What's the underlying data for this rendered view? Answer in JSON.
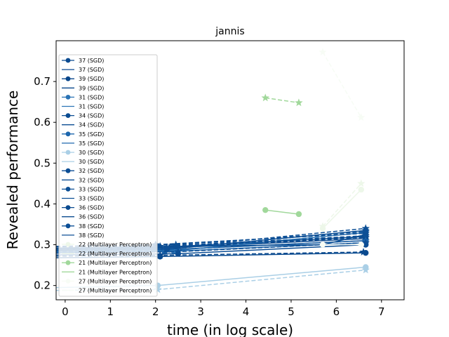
{
  "chart_data": {
    "type": "line",
    "title": "jannis",
    "xlabel": "time (in log scale)",
    "ylabel": "Revealed performance",
    "xlim": [
      -0.2,
      7.5
    ],
    "ylim": [
      0.165,
      0.8
    ],
    "xticks": [
      0,
      1,
      2,
      3,
      4,
      5,
      6,
      7
    ],
    "yticks": [
      0.2,
      0.3,
      0.4,
      0.5,
      0.6,
      0.7
    ],
    "legend_position": "upper-left",
    "legend": [
      {
        "label": "37 (SGD)",
        "style": "marker",
        "color": "#0b4a90"
      },
      {
        "label": "37 (SGD)",
        "style": "line",
        "color": "#0b4a90"
      },
      {
        "label": "39 (SGD)",
        "style": "marker",
        "color": "#08468b"
      },
      {
        "label": "39 (SGD)",
        "style": "line",
        "color": "#08468b"
      },
      {
        "label": "31 (SGD)",
        "style": "marker",
        "color": "#2a73b5"
      },
      {
        "label": "31 (SGD)",
        "style": "line",
        "color": "#2a73b5"
      },
      {
        "label": "34 (SGD)",
        "style": "marker",
        "color": "#0a4c92"
      },
      {
        "label": "34 (SGD)",
        "style": "line",
        "color": "#0a4c92"
      },
      {
        "label": "35 (SGD)",
        "style": "marker",
        "color": "#1c66ad"
      },
      {
        "label": "35 (SGD)",
        "style": "line",
        "color": "#1c66ad"
      },
      {
        "label": "30 (SGD)",
        "style": "marker",
        "color": "#aacfe6"
      },
      {
        "label": "30 (SGD)",
        "style": "line",
        "color": "#aacfe6"
      },
      {
        "label": "32 (SGD)",
        "style": "marker",
        "color": "#0b4d94"
      },
      {
        "label": "32 (SGD)",
        "style": "line",
        "color": "#0b4d94"
      },
      {
        "label": "33 (SGD)",
        "style": "marker",
        "color": "#0c4f95"
      },
      {
        "label": "33 (SGD)",
        "style": "line",
        "color": "#0c4f95"
      },
      {
        "label": "36 (SGD)",
        "style": "marker",
        "color": "#0a4a8f"
      },
      {
        "label": "36 (SGD)",
        "style": "line",
        "color": "#0a4a8f"
      },
      {
        "label": "38 (SGD)",
        "style": "marker",
        "color": "#0c4f96"
      },
      {
        "label": "38 (SGD)",
        "style": "line",
        "color": "#0c4f96"
      },
      {
        "label": "22 (Multilayer Perceptron)",
        "style": "marker",
        "color": "#edf7e9"
      },
      {
        "label": "22 (Multilayer Perceptron)",
        "style": "line",
        "color": "#edf7e9"
      },
      {
        "label": "21 (Multilayer Perceptron)",
        "style": "marker",
        "color": "#a1d89b"
      },
      {
        "label": "21 (Multilayer Perceptron)",
        "style": "line",
        "color": "#a1d89b"
      },
      {
        "label": "27 (Multilayer Perceptron)",
        "style": "marker",
        "color": "#f7fcf5"
      },
      {
        "label": "27 (Multilayer Perceptron)",
        "style": "line",
        "color": "#f7fcf5"
      }
    ],
    "series": [
      {
        "color": "#0b4a90",
        "dash": false,
        "points": [
          [
            -0.2,
            0.288
          ],
          [
            2.1,
            0.291
          ],
          [
            6.65,
            0.315
          ]
        ],
        "marker": "circle"
      },
      {
        "color": "#0b4a90",
        "dash": true,
        "points": [
          [
            -0.2,
            0.292
          ],
          [
            2.1,
            0.296
          ],
          [
            6.65,
            0.322
          ]
        ],
        "marker": "star"
      },
      {
        "color": "#08468b",
        "dash": false,
        "points": [
          [
            -0.2,
            0.285
          ],
          [
            2.3,
            0.288
          ],
          [
            6.65,
            0.31
          ]
        ],
        "marker": "circle"
      },
      {
        "color": "#08468b",
        "dash": true,
        "points": [
          [
            -0.2,
            0.29
          ],
          [
            2.3,
            0.293
          ],
          [
            6.65,
            0.318
          ]
        ],
        "marker": "star"
      },
      {
        "color": "#2a73b5",
        "dash": false,
        "points": [
          [
            -0.2,
            0.282
          ],
          [
            2.4,
            0.285
          ],
          [
            6.65,
            0.33
          ]
        ],
        "marker": "circle"
      },
      {
        "color": "#2a73b5",
        "dash": true,
        "points": [
          [
            -0.2,
            0.287
          ],
          [
            2.4,
            0.29
          ],
          [
            6.65,
            0.335
          ]
        ],
        "marker": "star"
      },
      {
        "color": "#0a4c92",
        "dash": false,
        "points": [
          [
            -0.2,
            0.29
          ],
          [
            2.0,
            0.293
          ],
          [
            6.65,
            0.32
          ]
        ],
        "marker": "circle"
      },
      {
        "color": "#0a4c92",
        "dash": true,
        "points": [
          [
            -0.2,
            0.295
          ],
          [
            2.0,
            0.3
          ],
          [
            6.65,
            0.328
          ]
        ],
        "marker": "star"
      },
      {
        "color": "#1c66ad",
        "dash": false,
        "points": [
          [
            -0.2,
            0.28
          ],
          [
            2.2,
            0.283
          ],
          [
            6.65,
            0.305
          ]
        ],
        "marker": "circle"
      },
      {
        "color": "#1c66ad",
        "dash": true,
        "points": [
          [
            -0.2,
            0.283
          ],
          [
            2.2,
            0.287
          ],
          [
            6.65,
            0.31
          ]
        ],
        "marker": "star"
      },
      {
        "color": "#aacfe6",
        "dash": false,
        "points": [
          [
            -0.2,
            0.195
          ],
          [
            2.05,
            0.2
          ],
          [
            6.65,
            0.245
          ]
        ],
        "marker": "circle"
      },
      {
        "color": "#aacfe6",
        "dash": true,
        "points": [
          [
            -0.2,
            0.188
          ],
          [
            2.05,
            0.19
          ],
          [
            6.65,
            0.238
          ]
        ],
        "marker": "star"
      },
      {
        "color": "#0b4d94",
        "dash": false,
        "points": [
          [
            -0.2,
            0.275
          ],
          [
            2.5,
            0.278
          ],
          [
            6.65,
            0.3
          ]
        ],
        "marker": "circle"
      },
      {
        "color": "#0b4d94",
        "dash": true,
        "points": [
          [
            -0.2,
            0.279
          ],
          [
            2.5,
            0.283
          ],
          [
            6.65,
            0.305
          ]
        ],
        "marker": "star"
      },
      {
        "color": "#0c4f95",
        "dash": false,
        "points": [
          [
            -0.2,
            0.292
          ],
          [
            2.45,
            0.296
          ],
          [
            5.7,
            0.3
          ],
          [
            6.65,
            0.325
          ]
        ],
        "marker": "circle"
      },
      {
        "color": "#0c4f95",
        "dash": true,
        "points": [
          [
            -0.2,
            0.296
          ],
          [
            2.45,
            0.3
          ],
          [
            6.65,
            0.332
          ]
        ],
        "marker": "star"
      },
      {
        "color": "#0a4a8f",
        "dash": false,
        "points": [
          [
            -0.2,
            0.268
          ],
          [
            2.1,
            0.271
          ],
          [
            6.65,
            0.28
          ]
        ],
        "marker": "circle"
      },
      {
        "color": "#0a4a8f",
        "dash": true,
        "points": [
          [
            -0.2,
            0.272
          ],
          [
            2.1,
            0.274
          ],
          [
            6.6,
            0.282
          ]
        ],
        "marker": "star"
      },
      {
        "color": "#0c4f96",
        "dash": false,
        "points": [
          [
            -0.2,
            0.286
          ],
          [
            2.25,
            0.289
          ],
          [
            6.65,
            0.335
          ]
        ],
        "marker": "circle"
      },
      {
        "color": "#0c4f96",
        "dash": true,
        "points": [
          [
            -0.2,
            0.289
          ],
          [
            2.25,
            0.292
          ],
          [
            6.65,
            0.34
          ]
        ],
        "marker": "star"
      },
      {
        "color": "#edf7e9",
        "dash": false,
        "points": [
          [
            5.7,
            0.34
          ],
          [
            6.55,
            0.435
          ]
        ],
        "marker": "circle"
      },
      {
        "color": "#edf7e9",
        "dash": true,
        "points": [
          [
            5.7,
            0.345
          ],
          [
            6.55,
            0.45
          ]
        ],
        "marker": "star"
      },
      {
        "color": "#a1d89b",
        "dash": false,
        "points": [
          [
            4.43,
            0.385
          ],
          [
            5.17,
            0.375
          ]
        ],
        "marker": "circle"
      },
      {
        "color": "#a1d89b",
        "dash": true,
        "points": [
          [
            4.43,
            0.66
          ],
          [
            5.17,
            0.648
          ]
        ],
        "marker": "star"
      },
      {
        "color": "#f7fcf5",
        "dash": false,
        "points": [
          [
            5.7,
            0.3
          ],
          [
            6.55,
            0.3
          ]
        ],
        "marker": "circle"
      },
      {
        "color": "#f7fcf5",
        "dash": true,
        "points": [
          [
            5.7,
            0.772
          ],
          [
            6.55,
            0.612
          ]
        ],
        "marker": "star"
      }
    ]
  }
}
